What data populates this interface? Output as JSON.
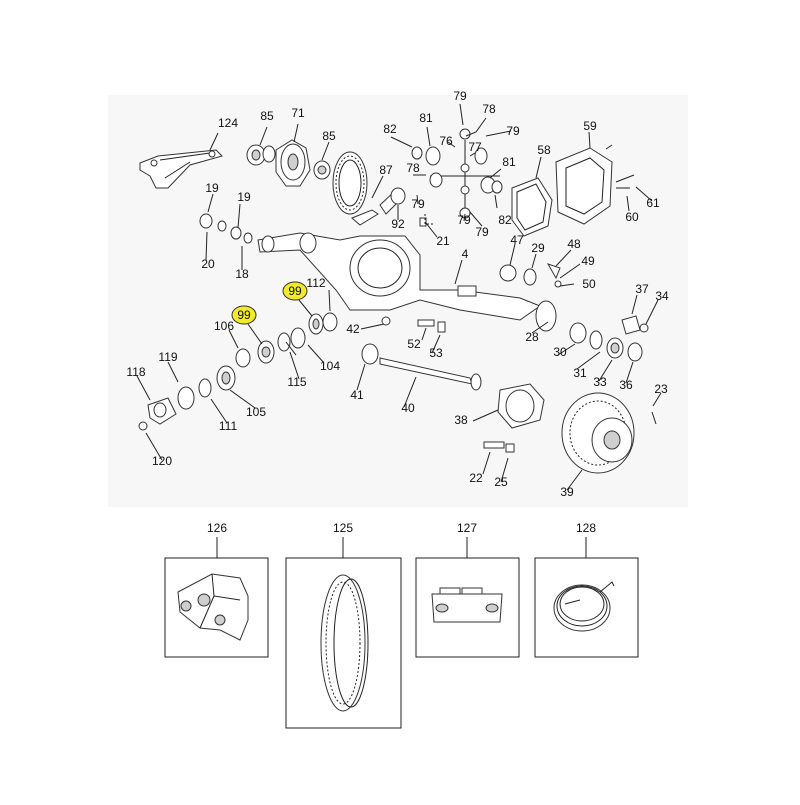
{
  "diagram": {
    "background_color": "#f7f7f7",
    "highlight_color": "#f3ea2a",
    "callouts": [
      {
        "id": "c124",
        "label": "124"
      },
      {
        "id": "c85a",
        "label": "85"
      },
      {
        "id": "c71",
        "label": "71"
      },
      {
        "id": "c85b",
        "label": "85"
      },
      {
        "id": "c82a",
        "label": "82"
      },
      {
        "id": "c81a",
        "label": "81"
      },
      {
        "id": "c79a",
        "label": "79"
      },
      {
        "id": "c78a",
        "label": "78"
      },
      {
        "id": "c76",
        "label": "76"
      },
      {
        "id": "c79b",
        "label": "79"
      },
      {
        "id": "c77",
        "label": "77"
      },
      {
        "id": "c78b",
        "label": "78"
      },
      {
        "id": "c79c",
        "label": "79"
      },
      {
        "id": "c81b",
        "label": "81"
      },
      {
        "id": "c82b",
        "label": "82"
      },
      {
        "id": "c79d",
        "label": "79"
      },
      {
        "id": "c79e",
        "label": "79"
      },
      {
        "id": "c58",
        "label": "58"
      },
      {
        "id": "c59",
        "label": "59"
      },
      {
        "id": "c61",
        "label": "61"
      },
      {
        "id": "c60",
        "label": "60"
      },
      {
        "id": "c87",
        "label": "87"
      },
      {
        "id": "c92",
        "label": "92"
      },
      {
        "id": "c21",
        "label": "21"
      },
      {
        "id": "c19a",
        "label": "19"
      },
      {
        "id": "c19b",
        "label": "19"
      },
      {
        "id": "c20",
        "label": "20"
      },
      {
        "id": "c18",
        "label": "18"
      },
      {
        "id": "c4",
        "label": "4"
      },
      {
        "id": "c47",
        "label": "47"
      },
      {
        "id": "c29",
        "label": "29"
      },
      {
        "id": "c48",
        "label": "48"
      },
      {
        "id": "c49",
        "label": "49"
      },
      {
        "id": "c50",
        "label": "50"
      },
      {
        "id": "c112",
        "label": "112"
      },
      {
        "id": "c42",
        "label": "42"
      },
      {
        "id": "c37",
        "label": "37"
      },
      {
        "id": "c34",
        "label": "34"
      },
      {
        "id": "c106",
        "label": "106"
      },
      {
        "id": "c52",
        "label": "52"
      },
      {
        "id": "c53",
        "label": "53"
      },
      {
        "id": "c28",
        "label": "28"
      },
      {
        "id": "c30",
        "label": "30"
      },
      {
        "id": "c31",
        "label": "31"
      },
      {
        "id": "c33",
        "label": "33"
      },
      {
        "id": "c36",
        "label": "36"
      },
      {
        "id": "c119",
        "label": "119"
      },
      {
        "id": "c104",
        "label": "104"
      },
      {
        "id": "c115",
        "label": "115"
      },
      {
        "id": "c118",
        "label": "118"
      },
      {
        "id": "c41",
        "label": "41"
      },
      {
        "id": "c105",
        "label": "105"
      },
      {
        "id": "c111",
        "label": "111"
      },
      {
        "id": "c40",
        "label": "40"
      },
      {
        "id": "c38",
        "label": "38"
      },
      {
        "id": "c23",
        "label": "23"
      },
      {
        "id": "c120",
        "label": "120"
      },
      {
        "id": "c22",
        "label": "22"
      },
      {
        "id": "c25",
        "label": "25"
      },
      {
        "id": "c39",
        "label": "39"
      }
    ],
    "highlighted_callouts": [
      {
        "id": "h99a",
        "label": "99"
      },
      {
        "id": "h99b",
        "label": "99"
      }
    ],
    "kit_boxes": [
      {
        "id": "k126",
        "label": "126"
      },
      {
        "id": "k125",
        "label": "125"
      },
      {
        "id": "k127",
        "label": "127"
      },
      {
        "id": "k128",
        "label": "128"
      }
    ]
  }
}
